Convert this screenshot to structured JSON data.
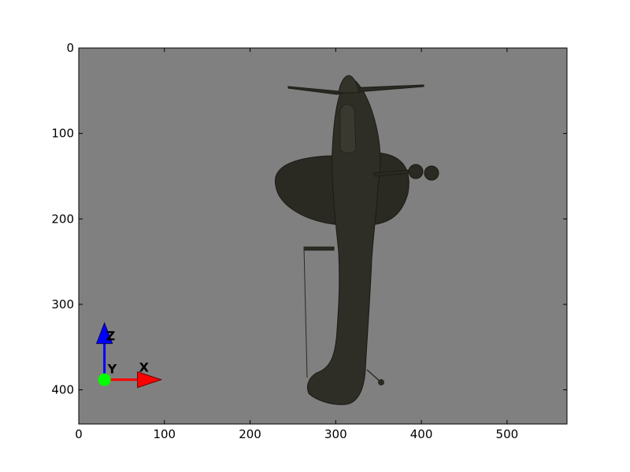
{
  "chart_data": {
    "type": "image",
    "title": "",
    "xlabel": "",
    "ylabel": "",
    "xlim": [
      0,
      570
    ],
    "ylim": [
      440,
      0
    ],
    "y_inverted": true,
    "x_ticks": [
      0,
      100,
      200,
      300,
      400,
      500
    ],
    "y_ticks": [
      0,
      100,
      200,
      300,
      400
    ],
    "x_tick_labels": [
      "0",
      "100",
      "200",
      "300",
      "400",
      "500"
    ],
    "y_tick_labels": [
      "0",
      "100",
      "200",
      "300",
      "400"
    ],
    "grid": false,
    "legend": "none",
    "background_color": "#808080",
    "subject": "propeller aircraft rendered from above",
    "orientation_gizmo": {
      "origin": [
        30,
        390
      ],
      "x_axis": {
        "label": "X",
        "color": "#ff0000"
      },
      "y_axis": {
        "label": "Y",
        "color": "#00ff00"
      },
      "z_axis": {
        "label": "Z",
        "color": "#0000ff"
      }
    }
  }
}
